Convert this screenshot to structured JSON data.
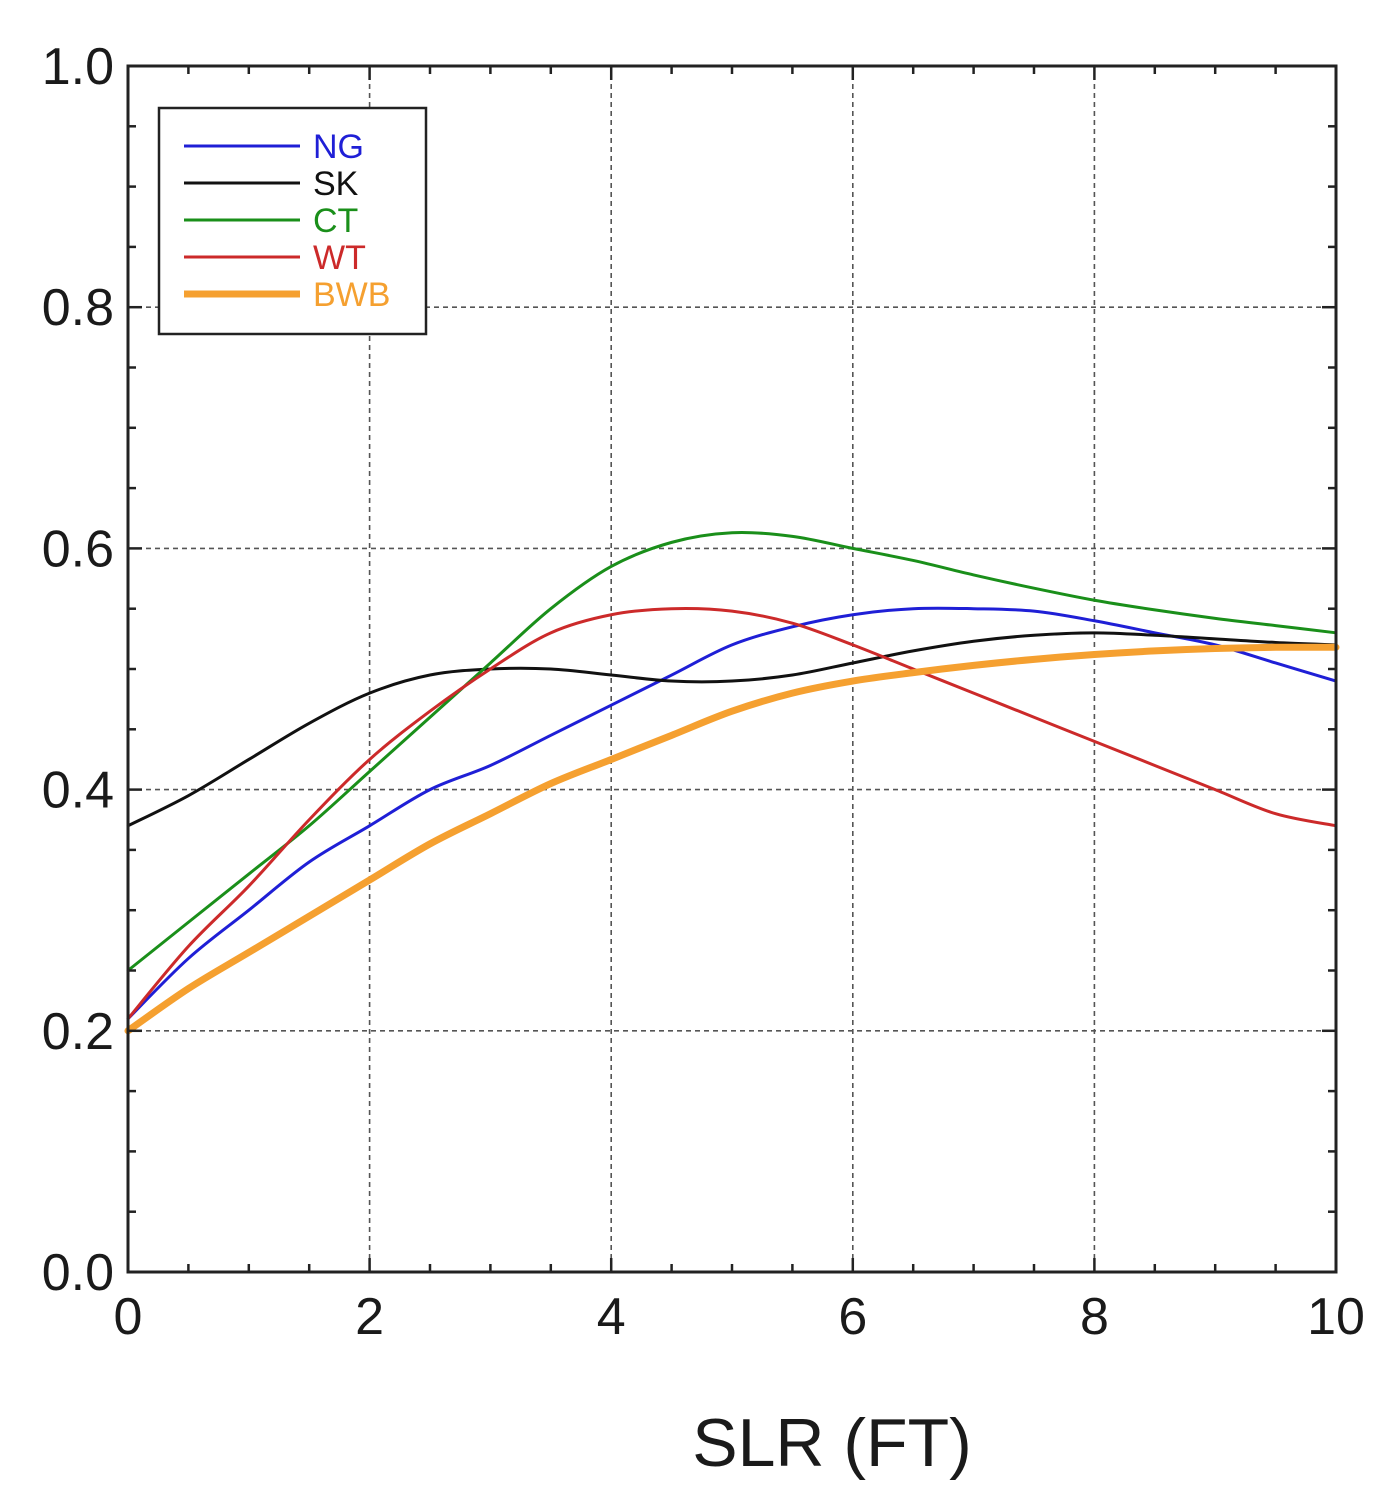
{
  "chart_data": {
    "type": "line",
    "title": "",
    "xlabel": "SLR (FT)",
    "ylabel": "",
    "xlim": [
      0,
      10
    ],
    "ylim": [
      0,
      1
    ],
    "x_ticks": [
      "0",
      "2",
      "4",
      "6",
      "8",
      "10"
    ],
    "y_ticks": [
      "0.0",
      "0.2",
      "0.4",
      "0.6",
      "0.8",
      "1.0"
    ],
    "grid": true,
    "legend_position": "top-left",
    "x": [
      0,
      0.5,
      1,
      1.5,
      2,
      2.5,
      3,
      3.5,
      4,
      4.5,
      5,
      5.5,
      6,
      6.5,
      7,
      7.5,
      8,
      8.5,
      9,
      9.5,
      10
    ],
    "series": [
      {
        "name": "NG",
        "color": "#1f1fd6",
        "width": 3,
        "values": [
          0.21,
          0.26,
          0.3,
          0.34,
          0.37,
          0.4,
          0.42,
          0.445,
          0.47,
          0.495,
          0.52,
          0.535,
          0.545,
          0.55,
          0.55,
          0.548,
          0.54,
          0.53,
          0.52,
          0.505,
          0.49
        ]
      },
      {
        "name": "SK",
        "color": "#111111",
        "width": 3,
        "values": [
          0.37,
          0.395,
          0.425,
          0.455,
          0.48,
          0.495,
          0.5,
          0.5,
          0.495,
          0.49,
          0.49,
          0.495,
          0.505,
          0.515,
          0.523,
          0.528,
          0.53,
          0.528,
          0.525,
          0.522,
          0.52
        ]
      },
      {
        "name": "CT",
        "color": "#1a8f1a",
        "width": 3,
        "values": [
          0.25,
          0.29,
          0.33,
          0.37,
          0.415,
          0.46,
          0.505,
          0.55,
          0.585,
          0.605,
          0.613,
          0.61,
          0.6,
          0.59,
          0.578,
          0.567,
          0.557,
          0.549,
          0.542,
          0.536,
          0.53
        ]
      },
      {
        "name": "WT",
        "color": "#cc2a2a",
        "width": 3,
        "values": [
          0.21,
          0.27,
          0.32,
          0.375,
          0.425,
          0.465,
          0.5,
          0.53,
          0.545,
          0.55,
          0.548,
          0.538,
          0.52,
          0.5,
          0.48,
          0.46,
          0.44,
          0.42,
          0.4,
          0.38,
          0.37
        ]
      },
      {
        "name": "BWB",
        "color": "#f5a030",
        "width": 7,
        "values": [
          0.2,
          0.235,
          0.265,
          0.295,
          0.325,
          0.355,
          0.38,
          0.405,
          0.425,
          0.445,
          0.465,
          0.48,
          0.49,
          0.497,
          0.503,
          0.508,
          0.512,
          0.515,
          0.517,
          0.518,
          0.518
        ]
      }
    ]
  }
}
